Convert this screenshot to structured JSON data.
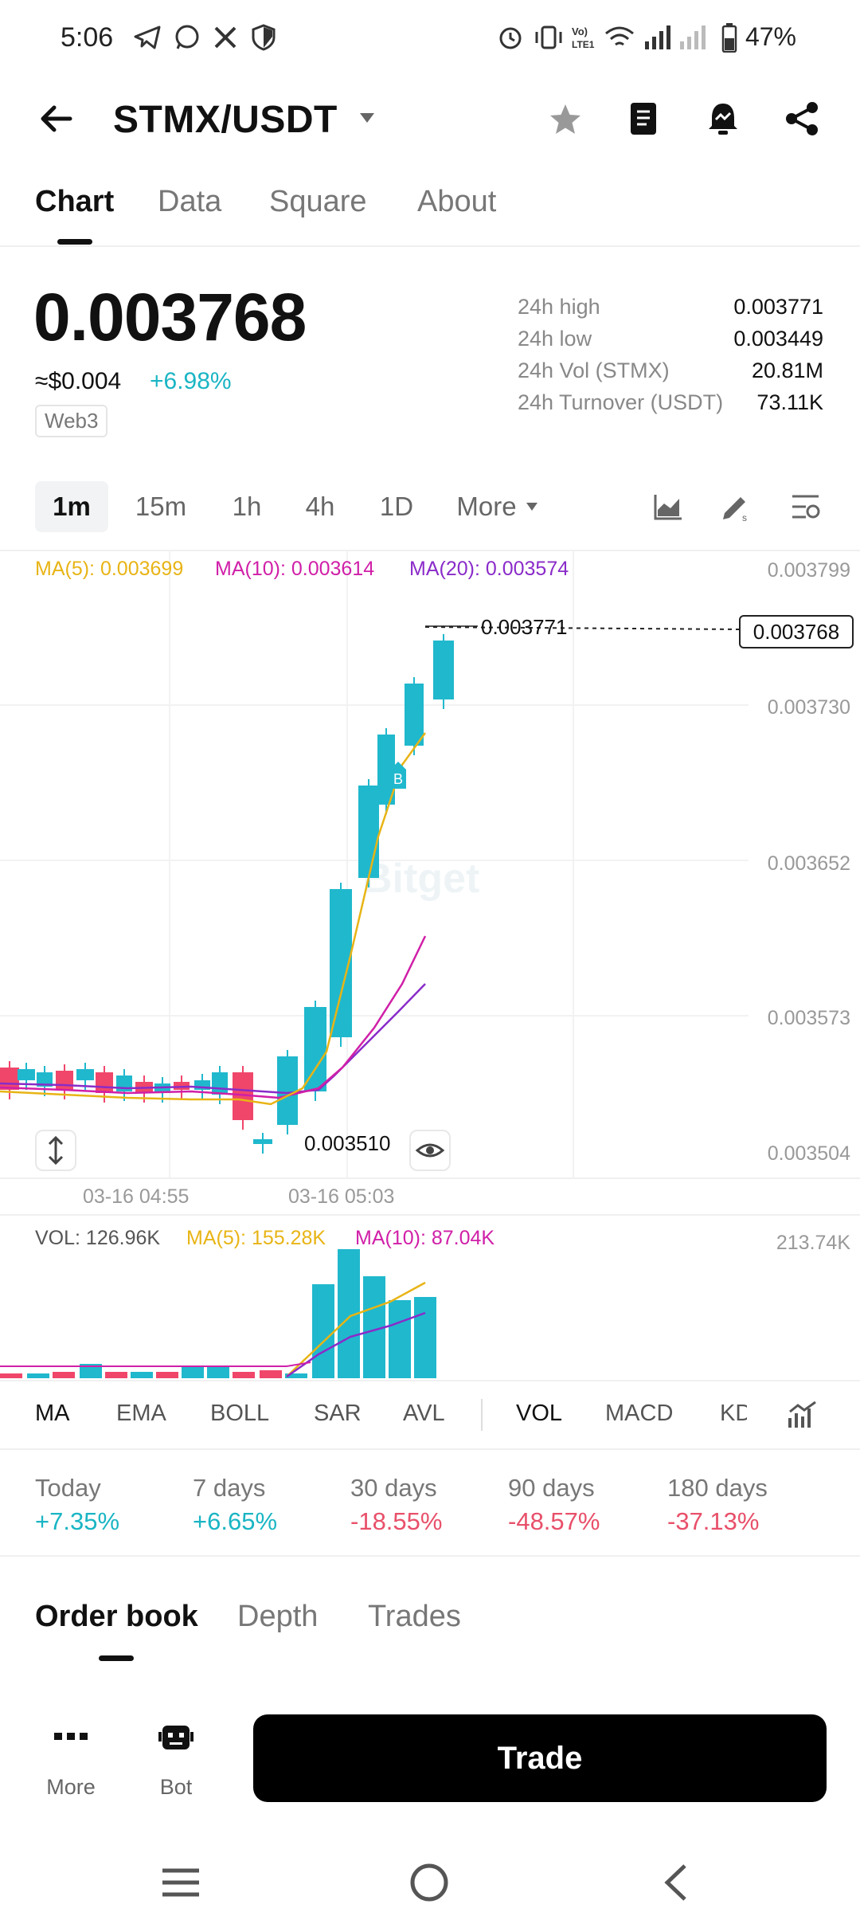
{
  "status_bar": {
    "time": "5:06",
    "battery": "47%"
  },
  "header": {
    "pair": "STMX/USDT"
  },
  "tabs": [
    {
      "label": "Chart"
    },
    {
      "label": "Data"
    },
    {
      "label": "Square"
    },
    {
      "label": "About"
    }
  ],
  "price": {
    "last": "0.003768",
    "approx": "≈$0.004",
    "change": "+6.98%",
    "tag": "Web3",
    "stats": [
      {
        "label": "24h high",
        "value": "0.003771"
      },
      {
        "label": "24h low",
        "value": "0.003449"
      },
      {
        "label": "24h Vol (STMX)",
        "value": "20.81M"
      },
      {
        "label": "24h Turnover (USDT)",
        "value": "73.11K"
      }
    ]
  },
  "intervals": [
    {
      "label": "1m"
    },
    {
      "label": "15m"
    },
    {
      "label": "1h"
    },
    {
      "label": "4h"
    },
    {
      "label": "1D"
    },
    {
      "label": "More"
    }
  ],
  "chart": {
    "ma5": "MA(5): 0.003699",
    "ma10": "MA(10): 0.003614",
    "ma20": "MA(20): 0.003574",
    "y_ticks": [
      "0.003799",
      "0.003730",
      "0.003652",
      "0.003573",
      "0.003504"
    ],
    "high_label": "0.003771",
    "low_label": "0.003510",
    "last_price_box": "0.003768",
    "marker": "B",
    "watermark": "Bitget",
    "dates": [
      "03-16 04:55",
      "03-16 05:03"
    ],
    "colors": {
      "up": "#20b8cd",
      "down": "#f0466a",
      "ma5": "#e8b415",
      "ma10": "#d01fa8",
      "ma20": "#8a2bc9"
    }
  },
  "volume": {
    "vol": "VOL: 126.96K",
    "ma5": "MA(5): 155.28K",
    "ma10": "MA(10): 87.04K",
    "max": "213.74K"
  },
  "indicators": [
    "MA",
    "EMA",
    "BOLL",
    "SAR",
    "AVL",
    "VOL",
    "MACD",
    "KD"
  ],
  "performance": [
    {
      "label": "Today",
      "value": "+7.35%",
      "dir": "up"
    },
    {
      "label": "7 days",
      "value": "+6.65%",
      "dir": "up"
    },
    {
      "label": "30 days",
      "value": "-18.55%",
      "dir": "down"
    },
    {
      "label": "90 days",
      "value": "-48.57%",
      "dir": "down"
    },
    {
      "label": "180 days",
      "value": "-37.13%",
      "dir": "down"
    }
  ],
  "order_tabs": [
    {
      "label": "Order book"
    },
    {
      "label": "Depth"
    },
    {
      "label": "Trades"
    }
  ],
  "bottom": {
    "more": "More",
    "bot": "Bot",
    "trade": "Trade"
  }
}
